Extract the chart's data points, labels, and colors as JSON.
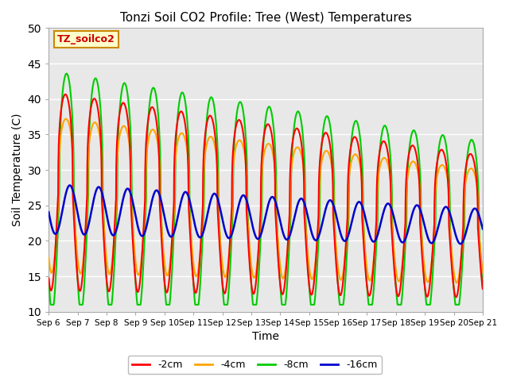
{
  "title": "Tonzi Soil CO2 Profile: Tree (West) Temperatures",
  "xlabel": "Time",
  "ylabel": "Soil Temperature (C)",
  "ylim": [
    10,
    50
  ],
  "background_color": "#ffffff",
  "plot_bg_color": "#e8e8e8",
  "legend_label": "TZ_soilco2",
  "legend_bg": "#ffffcc",
  "legend_border": "#cc8800",
  "line_colors": {
    "-2cm": "#ff0000",
    "-4cm": "#ffa500",
    "-8cm": "#00cc00",
    "-16cm": "#0000cc"
  },
  "line_widths": {
    "-2cm": 1.5,
    "-4cm": 1.5,
    "-8cm": 1.5,
    "-16cm": 1.8
  },
  "xtick_labels": [
    "Sep 6",
    "Sep 7",
    "Sep 8",
    "Sep 9",
    "Sep 10",
    "Sep 11",
    "Sep 12",
    "Sep 13",
    "Sep 14",
    "Sep 15",
    "Sep 16",
    "Sep 17",
    "Sep 18",
    "Sep 19",
    "Sep 20",
    "Sep 21"
  ],
  "grid_color": "#ffffff",
  "num_days": 15,
  "pts_per_day": 144,
  "figsize": [
    6.4,
    4.8
  ],
  "dpi": 100
}
